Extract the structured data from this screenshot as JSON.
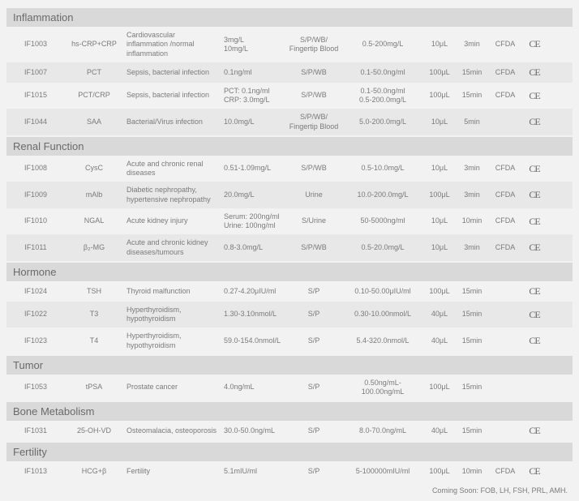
{
  "ce_mark": "CE",
  "footer": "Coming Soon: FOB, LH, FSH, PRL, AMH.",
  "sections": [
    {
      "title": "Inflammation",
      "rows": [
        {
          "code": "IF1003",
          "analyte": "hs-CRP+CRP",
          "clinical": "Cardiovascular inflammation /normal inflammation",
          "cutoff": "3mg/L\n10mg/L",
          "sample": "S/P/WB/\nFingertip Blood",
          "range": "0.5-200mg/L",
          "vol": "10μL",
          "time": "3min",
          "reg": "CFDA",
          "ce": true
        },
        {
          "code": "IF1007",
          "analyte": "PCT",
          "clinical": "Sepsis, bacterial infection",
          "cutoff": "0.1ng/ml",
          "sample": "S/P/WB",
          "range": "0.1-50.0ng/ml",
          "vol": "100μL",
          "time": "15min",
          "reg": "CFDA",
          "ce": true
        },
        {
          "code": "IF1015",
          "analyte": "PCT/CRP",
          "clinical": "Sepsis, bacterial infection",
          "cutoff": "PCT: 0.1ng/ml\nCRP: 3.0mg/L",
          "sample": "S/P/WB",
          "range": "0.1-50.0ng/ml\n0.5-200.0mg/L",
          "vol": "100μL",
          "time": "15min",
          "reg": "CFDA",
          "ce": true
        },
        {
          "code": "IF1044",
          "analyte": "SAA",
          "clinical": "Bacterial/Virus infection",
          "cutoff": "10.0mg/L",
          "sample": "S/P/WB/\nFingertip Blood",
          "range": "5.0-200.0mg/L",
          "vol": "10μL",
          "time": "5min",
          "reg": "",
          "ce": true
        }
      ]
    },
    {
      "title": "Renal Function",
      "rows": [
        {
          "code": "IF1008",
          "analyte": "CysC",
          "clinical": "Acute and chronic renal diseases",
          "cutoff": "0.51-1.09mg/L",
          "sample": "S/P/WB",
          "range": "0.5-10.0mg/L",
          "vol": "10μL",
          "time": "3min",
          "reg": "CFDA",
          "ce": true
        },
        {
          "code": "IF1009",
          "analyte": "mAlb",
          "clinical": "Diabetic nephropathy, hypertensive nephropathy",
          "cutoff": "20.0mg/L",
          "sample": "Urine",
          "range": "10.0-200.0mg/L",
          "vol": "100μL",
          "time": "3min",
          "reg": "CFDA",
          "ce": true
        },
        {
          "code": "IF1010",
          "analyte": "NGAL",
          "clinical": "Acute kidney injury",
          "cutoff": "Serum: 200ng/ml\nUrine: 100ng/ml",
          "sample": "S/Urine",
          "range": "50-5000ng/ml",
          "vol": "10μL",
          "time": "10min",
          "reg": "CFDA",
          "ce": true
        },
        {
          "code": "IF1011",
          "analyte": "β₂-MG",
          "clinical": "Acute and chronic kidney diseases/tumours",
          "cutoff": "0.8-3.0mg/L",
          "sample": "S/P/WB",
          "range": "0.5-20.0mg/L",
          "vol": "10μL",
          "time": "3min",
          "reg": "CFDA",
          "ce": true
        }
      ]
    },
    {
      "title": "Hormone",
      "rows": [
        {
          "code": "IF1024",
          "analyte": "TSH",
          "clinical": "Thyroid malfunction",
          "cutoff": "0.27-4.20μIU/ml",
          "sample": "S/P",
          "range": "0.10-50.00μIU/ml",
          "vol": "100μL",
          "time": "15min",
          "reg": "",
          "ce": true
        },
        {
          "code": "IF1022",
          "analyte": "T3",
          "clinical": "Hyperthyroidism, hypothyroidism",
          "cutoff": "1.30-3.10nmol/L",
          "sample": "S/P",
          "range": "0.30-10.00nmol/L",
          "vol": "40μL",
          "time": "15min",
          "reg": "",
          "ce": true
        },
        {
          "code": "IF1023",
          "analyte": "T4",
          "clinical": "Hyperthyroidism, hypothyroidism",
          "cutoff": "59.0-154.0nmol/L",
          "sample": "S/P",
          "range": "5.4-320.0nmol/L",
          "vol": "40μL",
          "time": "15min",
          "reg": "",
          "ce": true
        }
      ]
    },
    {
      "title": "Tumor",
      "rows": [
        {
          "code": "IF1053",
          "analyte": "tPSA",
          "clinical": "Prostate cancer",
          "cutoff": "4.0ng/mL",
          "sample": "S/P",
          "range": "0.50ng/mL-100.00ng/mL",
          "vol": "100μL",
          "time": "15min",
          "reg": "",
          "ce": false
        }
      ]
    },
    {
      "title": "Bone Metabolism",
      "rows": [
        {
          "code": "IF1031",
          "analyte": "25-OH-VD",
          "clinical": "Osteomalacia, osteoporosis",
          "cutoff": "30.0-50.0ng/mL",
          "sample": "S/P",
          "range": "8.0-70.0ng/mL",
          "vol": "40μL",
          "time": "15min",
          "reg": "",
          "ce": true
        }
      ]
    },
    {
      "title": "Fertility",
      "rows": [
        {
          "code": "IF1013",
          "analyte": "HCG+β",
          "clinical": "Fertility",
          "cutoff": "5.1mIU/ml",
          "sample": "S/P",
          "range": "5-100000mIU/ml",
          "vol": "100μL",
          "time": "10min",
          "reg": "CFDA",
          "ce": true
        }
      ]
    }
  ]
}
